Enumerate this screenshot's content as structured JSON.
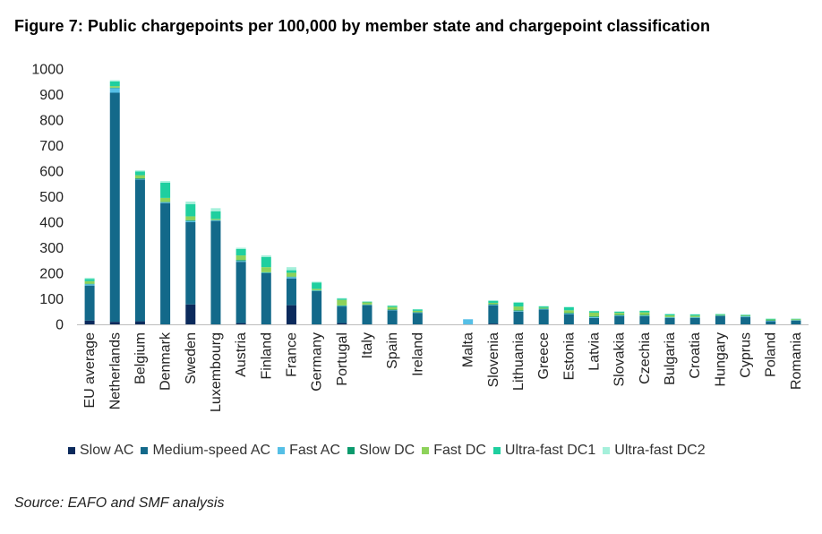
{
  "figure": {
    "title": "Figure 7: Public chargepoints per 100,000 by member state and chargepoint classification",
    "source": "Source: EAFO and SMF analysis"
  },
  "chart_data": {
    "type": "bar",
    "stacked": true,
    "title": "Figure 7: Public chargepoints per 100,000 by member state and chargepoint classification",
    "xlabel": "",
    "ylabel": "",
    "ylim": [
      0,
      1000
    ],
    "yticks": [
      0,
      100,
      200,
      300,
      400,
      500,
      600,
      700,
      800,
      900,
      1000
    ],
    "grid": false,
    "legend_position": "bottom",
    "categories": [
      "EU average",
      "Netherlands",
      "Belgium",
      "Denmark",
      "Sweden",
      "Luxembourg",
      "Austria",
      "Finland",
      "France",
      "Germany",
      "Portugal",
      "Italy",
      "Spain",
      "Ireland",
      "Malta",
      "Slovenia",
      "Lithuania",
      "Greece",
      "Estonia",
      "Latvia",
      "Slovakia",
      "Czechia",
      "Bulgaria",
      "Croatia",
      "Hungary",
      "Cyprus",
      "Poland",
      "Romania"
    ],
    "series": [
      {
        "name": "Slow AC",
        "color": "#0b2a5c",
        "values": [
          15,
          10,
          12,
          0,
          78,
          0,
          5,
          0,
          75,
          0,
          5,
          0,
          0,
          0,
          0,
          3,
          0,
          0,
          0,
          0,
          0,
          0,
          0,
          0,
          0,
          0,
          0,
          0
        ]
      },
      {
        "name": "Medium-speed AC",
        "color": "#13698a",
        "values": [
          137,
          897,
          555,
          475,
          322,
          405,
          240,
          200,
          105,
          130,
          65,
          75,
          55,
          45,
          0,
          72,
          50,
          58,
          40,
          25,
          33,
          32,
          25,
          25,
          33,
          28,
          12,
          15
        ]
      },
      {
        "name": "Fast AC",
        "color": "#55bfe6",
        "values": [
          5,
          18,
          2,
          3,
          5,
          3,
          3,
          2,
          5,
          2,
          2,
          1,
          1,
          1,
          20,
          2,
          2,
          2,
          2,
          3,
          2,
          2,
          2,
          2,
          1,
          3,
          2,
          1
        ]
      },
      {
        "name": "Slow DC",
        "color": "#0b9a6d",
        "values": [
          2,
          2,
          3,
          2,
          3,
          1,
          4,
          2,
          2,
          2,
          2,
          2,
          2,
          2,
          0,
          2,
          3,
          2,
          3,
          3,
          2,
          3,
          2,
          2,
          1,
          2,
          2,
          1
        ]
      },
      {
        "name": "Fast DC",
        "color": "#8dd25a",
        "values": [
          10,
          6,
          12,
          15,
          15,
          4,
          18,
          20,
          15,
          5,
          22,
          8,
          10,
          5,
          0,
          5,
          15,
          3,
          10,
          15,
          8,
          10,
          6,
          5,
          2,
          2,
          3,
          3
        ]
      },
      {
        "name": "Ultra-fast DC1",
        "color": "#1fcf9f",
        "values": [
          9,
          18,
          15,
          60,
          48,
          30,
          25,
          40,
          10,
          25,
          5,
          3,
          5,
          5,
          0,
          8,
          15,
          5,
          12,
          6,
          5,
          6,
          5,
          5,
          3,
          2,
          3,
          2
        ]
      },
      {
        "name": "Ultra-fast DC2",
        "color": "#a5f0db",
        "values": [
          4,
          5,
          4,
          6,
          10,
          12,
          5,
          6,
          12,
          3,
          2,
          1,
          1,
          2,
          0,
          3,
          3,
          2,
          2,
          1,
          1,
          1,
          1,
          1,
          1,
          1,
          1,
          1
        ]
      }
    ]
  }
}
